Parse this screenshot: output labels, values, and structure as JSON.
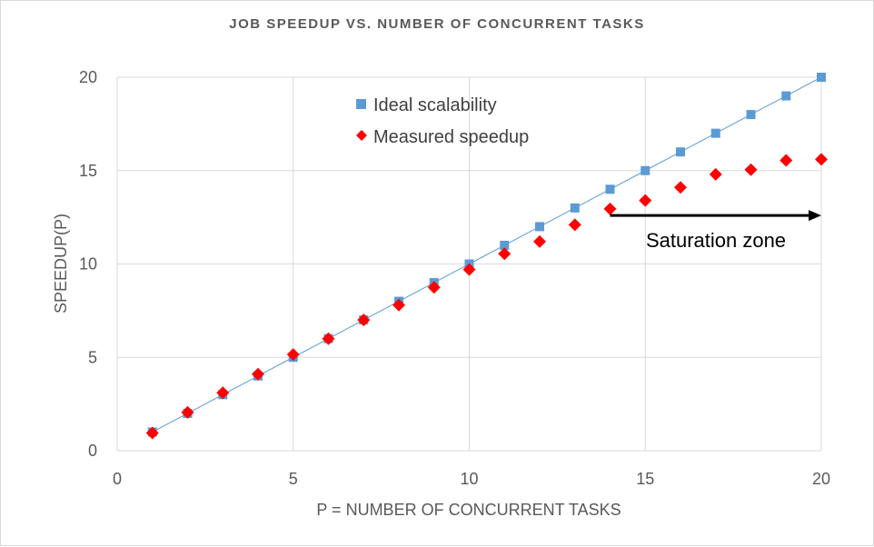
{
  "chart_data": {
    "type": "scatter",
    "title": "JOB SPEEDUP VS. NUMBER OF CONCURRENT TASKS",
    "xlabel": "P = NUMBER OF CONCURRENT TASKS",
    "ylabel": "SPEEDUP(P)",
    "xlim": [
      0,
      20
    ],
    "ylim": [
      0,
      20
    ],
    "x_ticks": [
      "0",
      "5",
      "10",
      "15",
      "20"
    ],
    "y_ticks": [
      "0",
      "5",
      "10",
      "15",
      "20"
    ],
    "grid": true,
    "legend_position": "top-center",
    "series": [
      {
        "name": "Ideal scalability",
        "marker": "square",
        "line": true,
        "color": "#5B9BD5",
        "x": [
          1,
          2,
          3,
          4,
          5,
          6,
          7,
          8,
          9,
          10,
          11,
          12,
          13,
          14,
          15,
          16,
          17,
          18,
          19,
          20
        ],
        "y": [
          1,
          2,
          3,
          4,
          5,
          6,
          7,
          8,
          9,
          10,
          11,
          12,
          13,
          14,
          15,
          16,
          17,
          18,
          19,
          20
        ]
      },
      {
        "name": "Measured speedup",
        "marker": "diamond",
        "line": false,
        "color": "#FF0000",
        "x": [
          1,
          2,
          3,
          4,
          5,
          6,
          7,
          8,
          9,
          10,
          11,
          12,
          13,
          14,
          15,
          16,
          17,
          18,
          19,
          20
        ],
        "y": [
          0.95,
          2.05,
          3.1,
          4.1,
          5.15,
          6.0,
          7.0,
          7.8,
          8.75,
          9.7,
          10.55,
          11.2,
          12.1,
          12.95,
          13.4,
          14.1,
          14.8,
          15.05,
          15.55,
          15.6
        ]
      }
    ],
    "annotations": [
      {
        "text": "Saturation zone",
        "arrow_from_x": 14,
        "arrow_to_x": 20,
        "arrow_y": 12.6
      }
    ]
  }
}
